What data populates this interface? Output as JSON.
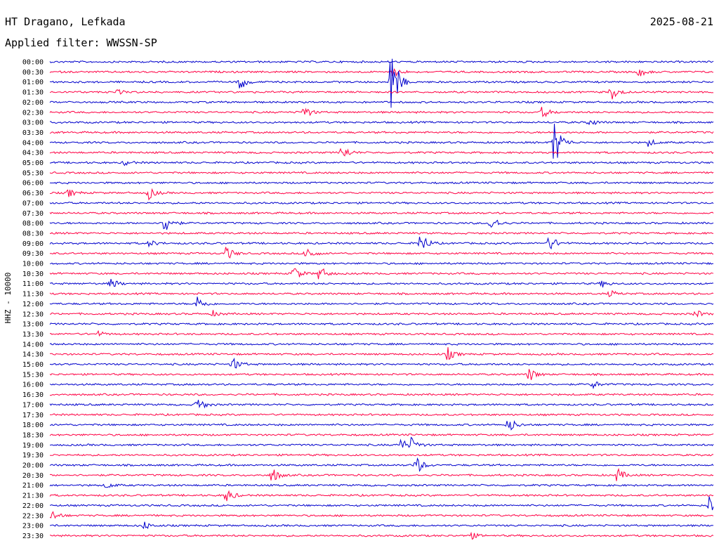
{
  "header": {
    "station": "HT Dragano, Lefkada",
    "date": "2025-08-21",
    "filter": "Applied filter: WWSSN-SP"
  },
  "axis": {
    "ylabel": "HHZ - 10000"
  },
  "colors": {
    "even": "#0000cc",
    "odd": "#ff0044",
    "background": "#ffffff",
    "text": "#000000"
  },
  "chart_data": {
    "type": "line",
    "title": "",
    "xlabel": "",
    "ylabel": "HHZ - 10000",
    "rows": [
      "00:00",
      "00:30",
      "01:00",
      "01:30",
      "02:00",
      "02:30",
      "03:00",
      "03:30",
      "04:00",
      "04:30",
      "05:00",
      "05:30",
      "06:00",
      "06:30",
      "07:00",
      "07:30",
      "08:00",
      "08:30",
      "09:00",
      "09:30",
      "10:00",
      "10:30",
      "11:00",
      "11:30",
      "12:00",
      "12:30",
      "13:00",
      "13:30",
      "14:00",
      "14:30",
      "15:00",
      "15:30",
      "16:00",
      "16:30",
      "17:00",
      "17:30",
      "18:00",
      "18:30",
      "19:00",
      "19:30",
      "20:00",
      "20:30",
      "21:00",
      "21:30",
      "22:00",
      "22:30",
      "23:00",
      "23:30"
    ],
    "row_minutes": 30,
    "events": [
      {
        "row": 1,
        "t": 0.518,
        "amp": 8
      },
      {
        "row": 1,
        "t": 0.888,
        "amp": 7
      },
      {
        "row": 2,
        "t": 0.514,
        "amp": 60
      },
      {
        "row": 2,
        "t": 0.285,
        "amp": 14
      },
      {
        "row": 3,
        "t": 0.846,
        "amp": 12
      },
      {
        "row": 3,
        "t": 0.102,
        "amp": 3
      },
      {
        "row": 5,
        "t": 0.383,
        "amp": 10
      },
      {
        "row": 5,
        "t": 0.742,
        "amp": 9
      },
      {
        "row": 6,
        "t": 0.813,
        "amp": 6
      },
      {
        "row": 8,
        "t": 0.76,
        "amp": 40
      },
      {
        "row": 8,
        "t": 0.902,
        "amp": 6
      },
      {
        "row": 9,
        "t": 0.44,
        "amp": 13
      },
      {
        "row": 10,
        "t": 0.113,
        "amp": 4
      },
      {
        "row": 13,
        "t": 0.028,
        "amp": 6
      },
      {
        "row": 13,
        "t": 0.149,
        "amp": 9
      },
      {
        "row": 16,
        "t": 0.173,
        "amp": 18
      },
      {
        "row": 16,
        "t": 0.665,
        "amp": 13
      },
      {
        "row": 18,
        "t": 0.15,
        "amp": 5
      },
      {
        "row": 18,
        "t": 0.558,
        "amp": 18
      },
      {
        "row": 18,
        "t": 0.753,
        "amp": 13
      },
      {
        "row": 19,
        "t": 0.266,
        "amp": 11
      },
      {
        "row": 19,
        "t": 0.386,
        "amp": 12
      },
      {
        "row": 21,
        "t": 0.367,
        "amp": 13
      },
      {
        "row": 21,
        "t": 0.406,
        "amp": 12
      },
      {
        "row": 22,
        "t": 0.092,
        "amp": 8
      },
      {
        "row": 22,
        "t": 0.832,
        "amp": 5
      },
      {
        "row": 23,
        "t": 0.844,
        "amp": 5
      },
      {
        "row": 24,
        "t": 0.222,
        "amp": 12
      },
      {
        "row": 25,
        "t": 0.973,
        "amp": 6
      },
      {
        "row": 25,
        "t": 0.246,
        "amp": 4
      },
      {
        "row": 27,
        "t": 0.072,
        "amp": 4
      },
      {
        "row": 29,
        "t": 0.599,
        "amp": 10
      },
      {
        "row": 30,
        "t": 0.275,
        "amp": 11
      },
      {
        "row": 31,
        "t": 0.722,
        "amp": 11
      },
      {
        "row": 32,
        "t": 0.818,
        "amp": 6
      },
      {
        "row": 34,
        "t": 0.222,
        "amp": 12
      },
      {
        "row": 36,
        "t": 0.691,
        "amp": 13
      },
      {
        "row": 38,
        "t": 0.528,
        "amp": 11
      },
      {
        "row": 38,
        "t": 0.545,
        "amp": 10
      },
      {
        "row": 40,
        "t": 0.551,
        "amp": 16
      },
      {
        "row": 41,
        "t": 0.335,
        "amp": 12
      },
      {
        "row": 41,
        "t": 0.855,
        "amp": 11
      },
      {
        "row": 42,
        "t": 0.085,
        "amp": 5
      },
      {
        "row": 43,
        "t": 0.266,
        "amp": 11
      },
      {
        "row": 44,
        "t": 0.995,
        "amp": 20
      },
      {
        "row": 45,
        "t": 0.003,
        "amp": 8
      },
      {
        "row": 46,
        "t": 0.142,
        "amp": 6
      },
      {
        "row": 47,
        "t": 0.632,
        "amp": 7
      }
    ]
  }
}
